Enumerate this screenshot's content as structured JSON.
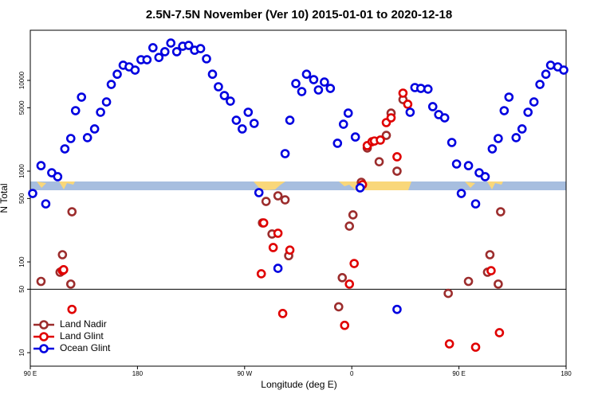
{
  "chart_data": {
    "type": "scatter",
    "title": "2.5N-7.5N November (Ver 10)   2015-01-01 to 2020-12-18",
    "x_label": "Longitude (deg E)",
    "y_label": "N Total",
    "log_y": true,
    "legend": "lower left",
    "xlim": [
      90,
      540
    ],
    "xticks": [
      {
        "value": 90,
        "label": "90 E"
      },
      {
        "value": 180,
        "label": "180"
      },
      {
        "value": 270,
        "label": "90 W"
      },
      {
        "value": 360,
        "label": "0"
      },
      {
        "value": 450,
        "label": "90 E"
      },
      {
        "value": 540,
        "label": "180"
      }
    ],
    "ylim": [
      7.1,
      35700
    ],
    "yticks": [
      10,
      50,
      100,
      500,
      1000,
      5000,
      10000
    ],
    "hline": 50,
    "series": [
      {
        "name": "Land Nadir",
        "color": "#9c2d2d",
        "x": [
          99,
          117,
          115,
          124,
          125,
          285,
          288,
          293,
          298,
          304,
          307,
          349,
          352,
          358,
          361,
          368,
          373,
          383,
          389,
          398,
          403,
          393,
          441,
          458,
          476,
          474,
          483,
          485
        ],
        "values": [
          61,
          120,
          77,
          57,
          357,
          269,
          464,
          203,
          535,
          483,
          117,
          32,
          67,
          248,
          330,
          754,
          1800,
          1270,
          2480,
          1000,
          6150,
          4360,
          45,
          61,
          120,
          77,
          57,
          357
        ]
      },
      {
        "name": "Land Glint",
        "color": "#e00000",
        "x": [
          117,
          118,
          125,
          284,
          286,
          294,
          298,
          302,
          308,
          354,
          358,
          362,
          369,
          373,
          377,
          379,
          384,
          389,
          393,
          398,
          403,
          407,
          442,
          464,
          477,
          484
        ],
        "values": [
          80,
          82,
          30,
          74,
          269,
          144,
          207,
          27,
          135,
          20,
          57,
          96,
          710,
          1910,
          2110,
          2150,
          2200,
          3430,
          3870,
          1440,
          7240,
          5460,
          12.5,
          11.5,
          80,
          16.6
        ]
      },
      {
        "name": "Ocean Glint",
        "color": "#0000e0",
        "x": [
          92,
          99,
          103,
          108,
          113,
          119,
          124,
          128,
          133,
          138,
          144,
          149,
          154,
          158,
          163,
          168,
          173,
          178,
          183,
          188,
          193,
          198,
          203,
          208,
          213,
          218,
          223,
          228,
          233,
          238,
          243,
          248,
          253,
          258,
          263,
          268,
          273,
          278,
          282,
          298,
          304,
          308,
          313,
          318,
          322,
          328,
          332,
          337,
          342,
          348,
          353,
          357,
          363,
          367,
          398,
          409,
          413,
          418,
          424,
          428,
          433,
          438,
          444,
          448,
          452,
          458,
          464,
          467,
          472,
          478,
          483,
          488,
          492,
          498,
          503,
          508,
          513,
          518,
          523,
          527,
          533,
          538
        ],
        "values": [
          568,
          1150,
          436,
          960,
          869,
          1760,
          2290,
          4640,
          6540,
          2340,
          2920,
          4460,
          5790,
          9030,
          11700,
          14700,
          14100,
          13000,
          16900,
          16900,
          22900,
          17900,
          20700,
          25800,
          20700,
          23800,
          24300,
          21500,
          22400,
          17300,
          11700,
          8510,
          6810,
          5910,
          3640,
          2920,
          4460,
          3360,
          580,
          85,
          1560,
          3640,
          9230,
          7530,
          11700,
          10200,
          7850,
          9590,
          8170,
          2030,
          3290,
          4360,
          2380,
          655,
          30,
          4460,
          8340,
          8170,
          8020,
          5140,
          4200,
          3870,
          2070,
          1200,
          568,
          1150,
          436,
          960,
          869,
          1760,
          2290,
          4640,
          6540,
          2340,
          2920,
          4460,
          5790,
          9030,
          11700,
          14700,
          14100,
          13000
        ]
      }
    ]
  }
}
